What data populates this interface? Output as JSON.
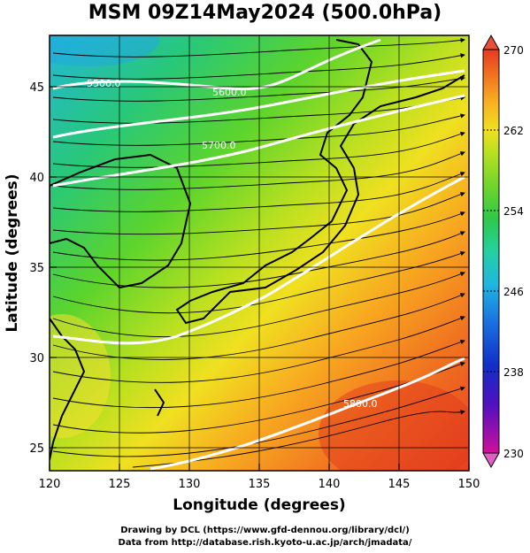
{
  "title": "MSM 09Z14May2024 (500.0hPa)",
  "xaxis": {
    "label": "Longitude (degrees)",
    "ticks": [
      "120",
      "125",
      "130",
      "135",
      "140",
      "145",
      "150"
    ],
    "range": [
      120,
      150
    ]
  },
  "yaxis": {
    "label": "Latitude  (degrees)",
    "ticks": [
      "25",
      "30",
      "35",
      "40",
      "45"
    ],
    "range": [
      22.4,
      47.6
    ]
  },
  "colorbar": {
    "ticks": [
      "270",
      "262",
      "254",
      "246",
      "238",
      "230"
    ],
    "range": [
      230,
      270
    ],
    "colors": [
      "#d0109a",
      "#5010c0",
      "#1030c8",
      "#1a6ee0",
      "#20b8e0",
      "#24d0a0",
      "#2ec84a",
      "#6ed42c",
      "#b4e020",
      "#f0e020",
      "#f8b020",
      "#f07020",
      "#e83a20"
    ]
  },
  "contours": [
    {
      "label": "5500.0",
      "color": "#ffffff"
    },
    {
      "label": "5600.0",
      "color": "#ffffff"
    },
    {
      "label": "5700.0",
      "color": "#ffffff"
    },
    {
      "label": "5800.0",
      "color": "#ffffff"
    }
  ],
  "grid": true,
  "field": "streamlines over 500 hPa temperature",
  "footer": {
    "line1": "Drawing by DCL (https://www.gfd-dennou.org/library/dcl/)",
    "line2": "Data from http://database.rish.kyoto-u.ac.jp/arch/jmadata/"
  }
}
